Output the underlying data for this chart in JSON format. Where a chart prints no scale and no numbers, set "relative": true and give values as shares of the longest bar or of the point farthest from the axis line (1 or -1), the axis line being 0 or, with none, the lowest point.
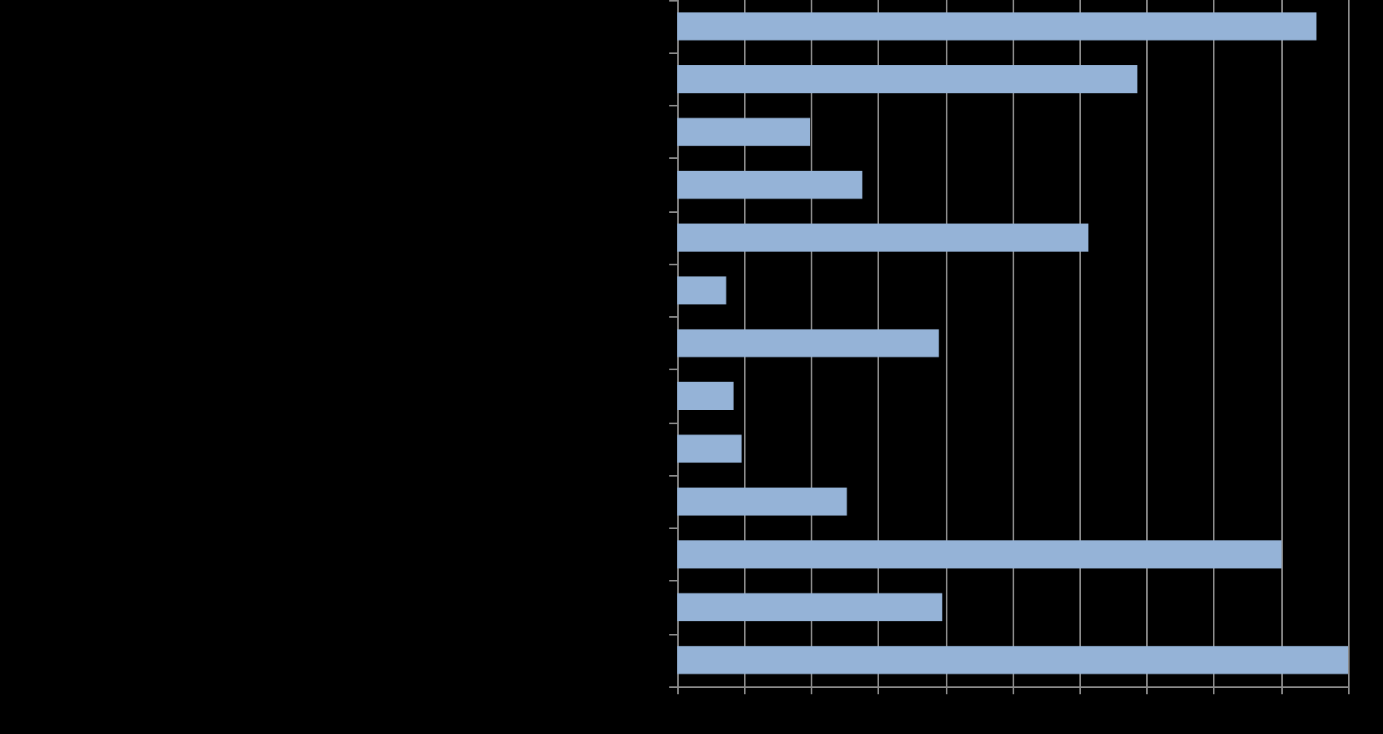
{
  "chart_data": {
    "type": "bar",
    "orientation": "horizontal",
    "relative": true,
    "categories": [
      null,
      null,
      null,
      null,
      null,
      null,
      null,
      null,
      null,
      null,
      null,
      null,
      null
    ],
    "values": [
      0.953,
      0.686,
      0.198,
      0.276,
      0.613,
      0.073,
      0.39,
      0.084,
      0.096,
      0.253,
      0.901,
      0.395,
      1
    ],
    "color": "#95b3d7",
    "grid": "x"
  }
}
